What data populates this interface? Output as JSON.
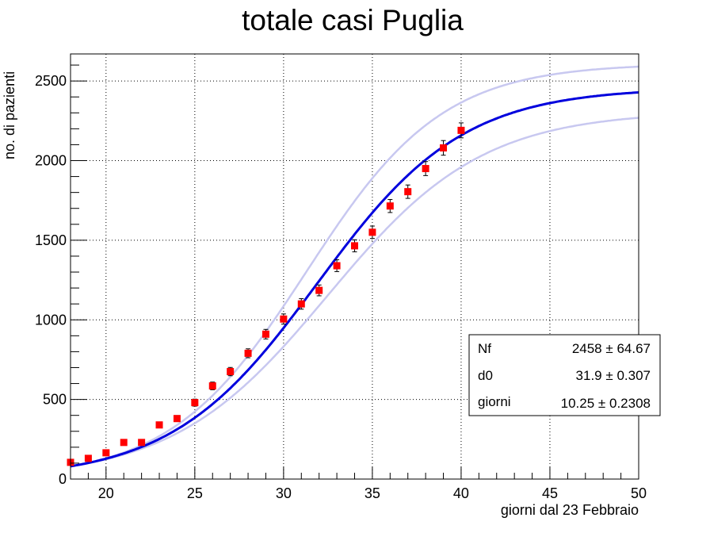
{
  "chart_data": {
    "type": "scatter",
    "title": "totale casi Puglia",
    "xlabel": "giorni dal 23 Febbraio",
    "ylabel": "no. di pazienti",
    "xlim": [
      18,
      50
    ],
    "ylim": [
      0,
      2670
    ],
    "x_ticks": [
      20,
      25,
      30,
      35,
      40,
      45,
      50
    ],
    "y_ticks": [
      0,
      500,
      1000,
      1500,
      2000,
      2500
    ],
    "grid": true,
    "series": [
      {
        "kind": "points",
        "color": "#ff0000",
        "x": [
          18,
          19,
          20,
          21,
          22,
          23,
          24,
          25,
          26,
          27,
          28,
          29,
          30,
          31,
          32,
          33,
          34,
          35,
          36,
          37,
          38,
          39,
          40
        ],
        "y": [
          105,
          130,
          165,
          230,
          230,
          340,
          380,
          480,
          585,
          675,
          790,
          910,
          1005,
          1100,
          1185,
          1340,
          1465,
          1550,
          1715,
          1805,
          1950,
          2080,
          2190
        ],
        "yerr": [
          10,
          11,
          13,
          15,
          15,
          18,
          19,
          22,
          24,
          26,
          28,
          30,
          32,
          33,
          34,
          37,
          38,
          39,
          41,
          42,
          44,
          46,
          47
        ]
      },
      {
        "kind": "fit",
        "color": "#0000dd",
        "model": "logistic",
        "params": {
          "Nf": 2458,
          "d0": 31.9,
          "giorni": 10.25
        }
      },
      {
        "kind": "band-upper",
        "color": "#c8c8f0",
        "model": "logistic",
        "params": {
          "Nf": 2610,
          "d0": 31.3,
          "giorni": 9.6
        }
      },
      {
        "kind": "band-lower",
        "color": "#c8c8f0",
        "model": "logistic",
        "params": {
          "Nf": 2310,
          "d0": 32.5,
          "giorni": 10.9
        }
      }
    ],
    "stats_box": {
      "position": "bottom-right",
      "rows": [
        {
          "name": "Nf",
          "value": "2458",
          "pm": "±",
          "error": "64.67"
        },
        {
          "name": "d0",
          "value": "31.9",
          "pm": "±",
          "error": "0.307"
        },
        {
          "name": "giorni",
          "value": "10.25",
          "pm": "±",
          "error": "0.2308"
        }
      ]
    }
  }
}
